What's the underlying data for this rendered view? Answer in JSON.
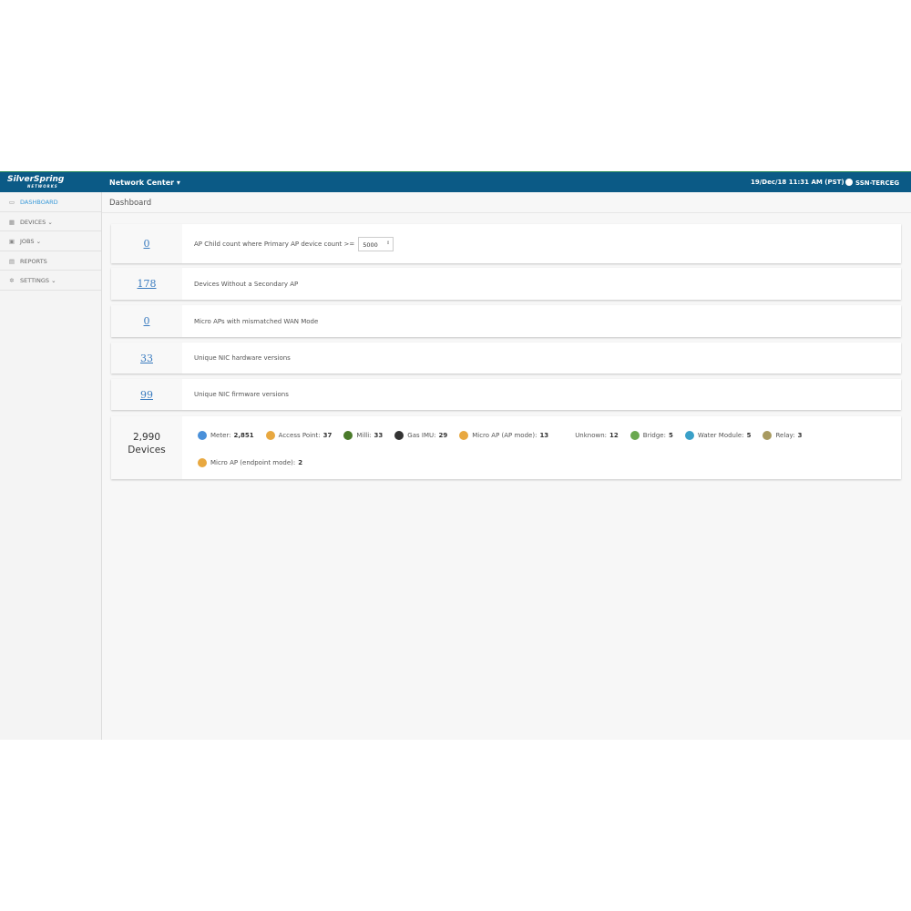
{
  "header": {
    "logo": "SilverSpring",
    "logo_sub": "NETWORKS",
    "app_menu": "Network Center",
    "datetime": "19/Dec/18 11:31 AM (PST)",
    "user": "SSN-TERCEG"
  },
  "sidebar": {
    "items": [
      {
        "label": "DASHBOARD",
        "icon": "monitor-icon",
        "active": true
      },
      {
        "label": "DEVICES",
        "icon": "grid-icon"
      },
      {
        "label": "JOBS",
        "icon": "calendar-icon"
      },
      {
        "label": "REPORTS",
        "icon": "report-icon"
      },
      {
        "label": "SETTINGS",
        "icon": "gear-icon"
      }
    ]
  },
  "breadcrumb": "Dashboard",
  "cards": [
    {
      "value": "0",
      "label": "AP Child count where Primary AP device count >=",
      "input": "5000"
    },
    {
      "value": "178",
      "label": "Devices Without a Secondary AP"
    },
    {
      "value": "0",
      "label": "Micro APs with mismatched WAN Mode"
    },
    {
      "value": "33",
      "label": "Unique NIC hardware versions"
    },
    {
      "value": "99",
      "label": "Unique NIC firmware versions"
    }
  ],
  "devices": {
    "total": "2,990",
    "total_label": "Devices",
    "types": [
      {
        "label": "Meter:",
        "count": "2,851",
        "color": "#4a90d9"
      },
      {
        "label": "Access Point:",
        "count": "37",
        "color": "#e8a840"
      },
      {
        "label": "Milli:",
        "count": "33",
        "color": "#4a7a2a"
      },
      {
        "label": "Gas IMU:",
        "count": "29",
        "color": "#333333"
      },
      {
        "label": "Micro AP (AP mode):",
        "count": "13",
        "color": "#e8a840"
      },
      {
        "label": "Unknown:",
        "count": "12",
        "color": ""
      },
      {
        "label": "Bridge:",
        "count": "5",
        "color": "#6aa84f"
      },
      {
        "label": "Water Module:",
        "count": "5",
        "color": "#3aa0c8"
      },
      {
        "label": "Relay:",
        "count": "3",
        "color": "#a89a60"
      },
      {
        "label": "Micro AP (endpoint mode):",
        "count": "2",
        "color": "#e8a840"
      }
    ]
  }
}
